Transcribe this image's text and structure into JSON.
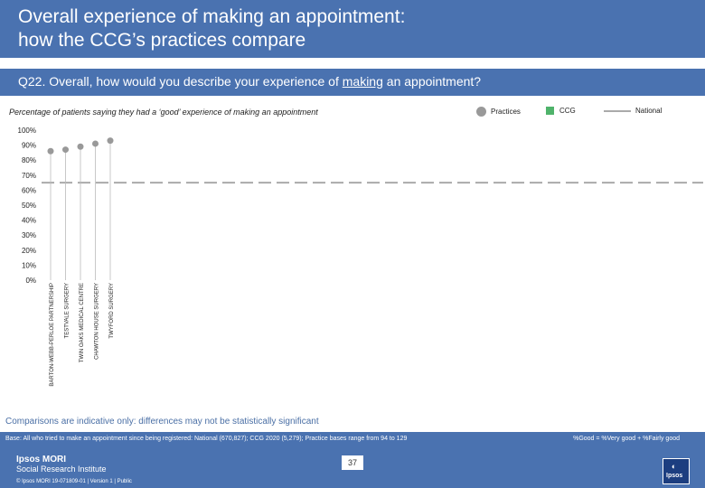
{
  "header": {
    "title_line1": "Overall experience of making an appointment:",
    "title_line2": "how the CCG’s practices compare"
  },
  "question": {
    "prefix": "Q22. Overall, how would you describe your experience of ",
    "underlined": "making",
    "suffix": " an appointment?"
  },
  "subtitle": "Percentage of patients saying they had a ‘good’ experience of making an appointment",
  "legend": {
    "practices": "Practices",
    "ccg": "CCG",
    "national": "National"
  },
  "note": "Comparisons are indicative only: differences may not be statistically significant",
  "footer": {
    "base": "Base: All who tried to make an appointment since being registered: National (670,827); CCG 2020 (5,279); Practice bases range from 94 to 129",
    "definition": "%Good = %Very good + %Fairly good",
    "logo_line1": "Ipsos MORI",
    "logo_line2": "Social Research Institute",
    "copyright": "© Ipsos MORI    19-071809-01 | Version 1 | Public",
    "page_number": "37",
    "ipsos_mark": "◐",
    "ipsos_word": "Ipsos"
  },
  "colors": {
    "header": "#4a72b0",
    "practice_dot": "#999999",
    "ccg": "#4fb36b",
    "national": "#aaaaaa",
    "note": "#4a6fa5"
  },
  "chart_data": {
    "type": "scatter",
    "yticks": [
      "0%",
      "10%",
      "20%",
      "30%",
      "40%",
      "50%",
      "60%",
      "70%",
      "80%",
      "90%",
      "100%"
    ],
    "ylim": [
      0,
      100
    ],
    "categories": [
      "BARTON-WEBB-PERLOE PARTNERSHIP",
      "TESTVALE SURGERY",
      "TWIN OAKS MEDICAL CENTRE",
      "CHAWTON HOUSE SURGERY",
      "TWYFORD SURGERY"
    ],
    "practices": [
      86,
      87,
      89,
      91,
      93
    ],
    "national": 65,
    "grid": false,
    "legend_position": "top-right"
  }
}
